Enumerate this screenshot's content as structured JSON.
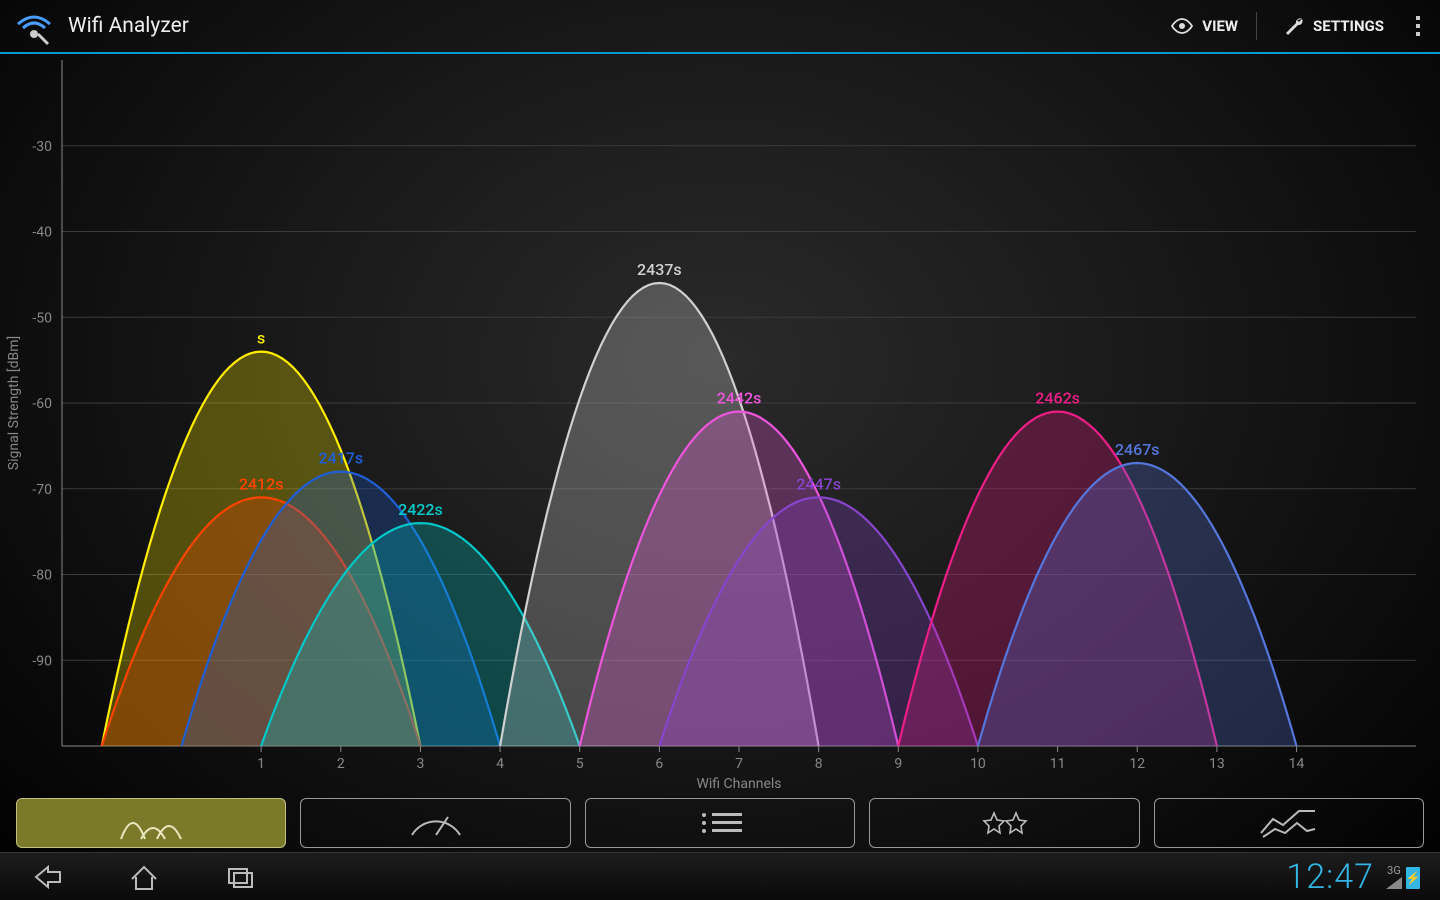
{
  "app": {
    "title": "Wifi Analyzer"
  },
  "actions": {
    "view": "VIEW",
    "settings": "SETTINGS"
  },
  "chart": {
    "type": "wifi-channel-parabolas",
    "background_gradient": [
      "#2a2a2a",
      "#1a1a1a",
      "#0d0d0d",
      "#000000"
    ],
    "grid_color": "#3b3b3b",
    "axis_color": "#888888",
    "tick_fontsize": 14,
    "label_fontsize": 14,
    "netlabel_fontsize": 16,
    "x": {
      "label": "Wifi Channels",
      "channels": [
        1,
        2,
        3,
        4,
        5,
        6,
        7,
        8,
        9,
        10,
        11,
        12,
        13,
        14
      ],
      "min_channel": -1.5,
      "max_channel": 15.5
    },
    "y": {
      "label": "Signal Strength [dBm]",
      "min": -100,
      "max": -20,
      "ticks": [
        -30,
        -40,
        -50,
        -60,
        -70,
        -80,
        -90
      ]
    },
    "signal_width_channels": 4,
    "networks": [
      {
        "label": "s",
        "channel": 1,
        "peak_dbm": -54,
        "stroke": "#ffee00",
        "fill": "#ffee00"
      },
      {
        "label": "2412s",
        "channel": 1,
        "peak_dbm": -71,
        "stroke": "#ff4400",
        "fill": "#ff4400"
      },
      {
        "label": "2417s",
        "channel": 2,
        "peak_dbm": -68,
        "stroke": "#1e5fd8",
        "fill": "#1e5fd8"
      },
      {
        "label": "2422s",
        "channel": 3,
        "peak_dbm": -74,
        "stroke": "#00c8c8",
        "fill": "#00c8c8"
      },
      {
        "label": "2437s",
        "channel": 6,
        "peak_dbm": -46,
        "stroke": "#d0d0d0",
        "fill": "#d0d0d0"
      },
      {
        "label": "2442s",
        "channel": 7,
        "peak_dbm": -61,
        "stroke": "#ee55dd",
        "fill": "#ee55dd"
      },
      {
        "label": "2447s",
        "channel": 8,
        "peak_dbm": -71,
        "stroke": "#8844cc",
        "fill": "#8844cc"
      },
      {
        "label": "2462s",
        "channel": 11,
        "peak_dbm": -61,
        "stroke": "#ee1e88",
        "fill": "#ee1e88"
      },
      {
        "label": "2467s",
        "channel": 12,
        "peak_dbm": -67,
        "stroke": "#5577dd",
        "fill": "#5577dd"
      }
    ],
    "fill_opacity": 0.28,
    "stroke_width": 2.2
  },
  "viewtabs": {
    "active_index": 0,
    "items": [
      "channel-graph",
      "signal-meter",
      "channel-list",
      "channel-rating",
      "time-graph"
    ]
  },
  "statusbar": {
    "clock": "12:47",
    "network_type": "3G"
  }
}
